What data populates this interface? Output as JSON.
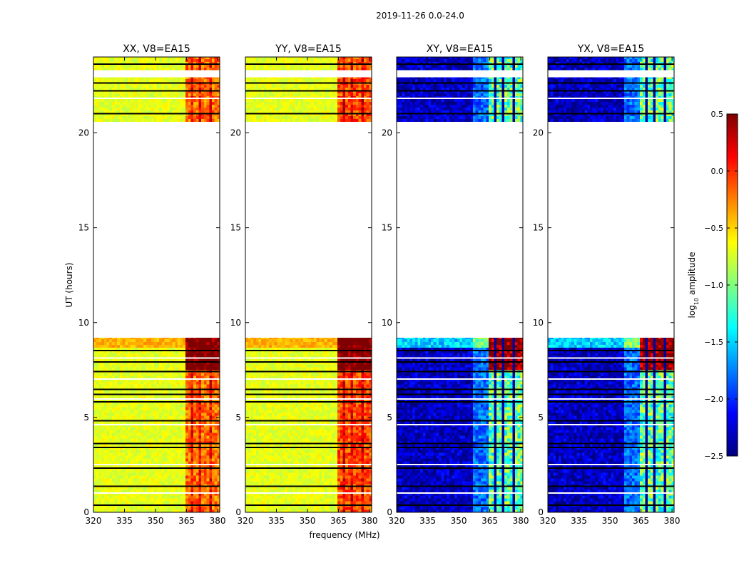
{
  "chart_data": {
    "type": "heatmap",
    "suptitle": "2019-11-26 0.0-24.0",
    "xlabel": "frequency (MHz)",
    "ylabel": "UT (hours)",
    "xlim": [
      320,
      381
    ],
    "ylim": [
      0,
      24
    ],
    "xticks": [
      320,
      335,
      350,
      365,
      380
    ],
    "yticks": [
      0,
      5,
      10,
      15,
      20
    ],
    "colorbar": {
      "label": "log10 amplitude",
      "label_base": "log",
      "label_sub": "10",
      "label_rest": " amplitude",
      "range": [
        -2.5,
        0.5
      ],
      "ticks": [
        "0.5",
        "0.0",
        "−0.5",
        "−1.0",
        "−1.5",
        "−2.0",
        "−2.5"
      ],
      "colormap": [
        "#00007f",
        "#0000ff",
        "#0080ff",
        "#00ffff",
        "#80ff80",
        "#ffff00",
        "#ff8000",
        "#ff0000",
        "#7f0000"
      ]
    },
    "data_segments_hours": [
      [
        0,
        9.2
      ],
      [
        20.6,
        24.0
      ]
    ],
    "flag_band_mhz": [
      363.5,
      380.0
    ],
    "panels": [
      {
        "title": "XX, V8=EA15",
        "kind": "parallel",
        "base_level": -0.7,
        "band_level": -0.2,
        "band_level_late": 0.5
      },
      {
        "title": "YY, V8=EA15",
        "kind": "parallel",
        "base_level": -0.7,
        "band_level": -0.1,
        "band_level_late": 0.5
      },
      {
        "title": "XY, V8=EA15",
        "kind": "cross",
        "base_level": -2.3,
        "band_level": -1.1,
        "band_level_late": 0.5
      },
      {
        "title": "YX, V8=EA15",
        "kind": "cross",
        "base_level": -2.3,
        "band_level": -1.1,
        "band_level_late": 0.5
      }
    ]
  }
}
